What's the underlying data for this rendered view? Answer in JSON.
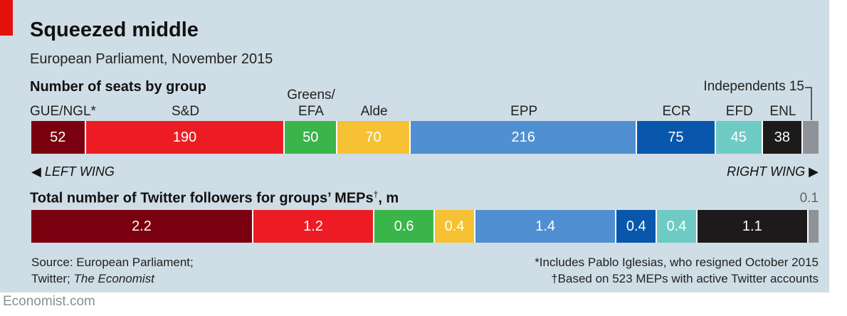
{
  "header": {
    "title": "Squeezed middle",
    "subtitle": "European Parliament, November 2015"
  },
  "seats_heading": "Number of seats by group",
  "twitter_heading": "Total number of Twitter followers for groups’ MEPs",
  "twitter_heading_mark": "†",
  "twitter_heading_unit": ", m",
  "independents_label": "Independents 15",
  "twitter_other_label": "0.1",
  "wing_left": "LEFT WING",
  "wing_right": "RIGHT WING",
  "arrow_left": "◀",
  "arrow_right": "▶",
  "source_line1": "Source: European Parliament;",
  "source_line2_prefix": "Twitter; ",
  "source_line2_italic": "The Economist",
  "note1": "*Includes Pablo Iglesias, who resigned October 2015",
  "note2": "†Based on 523 MEPs with active Twitter accounts",
  "footer": "Economist.com",
  "colors": {
    "GUE/NGL": "#7a000f",
    "S&D": "#ed1c24",
    "Greens/EFA": "#3ab54a",
    "Alde": "#f6c233",
    "EPP": "#508fd1",
    "ECR": "#0857ac",
    "EFD": "#6dcbc4",
    "ENL": "#1c1a1a",
    "Independents": "#8e9399"
  },
  "chart_data": [
    {
      "type": "bar",
      "orientation": "horizontal-stacked",
      "title": "Number of seats by group",
      "categories": [
        "GUE/NGL",
        "S&D",
        "Greens/EFA",
        "Alde",
        "EPP",
        "ECR",
        "EFD",
        "ENL",
        "Independents"
      ],
      "category_labels": [
        "GUE/NGL*",
        "S&D",
        "Greens/\nEFA",
        "Alde",
        "EPP",
        "ECR",
        "EFD",
        "ENL",
        ""
      ],
      "values": [
        52,
        190,
        50,
        70,
        216,
        75,
        45,
        38,
        15
      ],
      "value_labels": [
        "52",
        "190",
        "50",
        "70",
        "216",
        "75",
        "45",
        "38",
        ""
      ]
    },
    {
      "type": "bar",
      "orientation": "horizontal-stacked",
      "title": "Total number of Twitter followers for groups’ MEPs†, m",
      "categories": [
        "GUE/NGL",
        "S&D",
        "Greens/EFA",
        "Alde",
        "EPP",
        "ECR",
        "EFD",
        "ENL",
        "Independents"
      ],
      "values": [
        2.2,
        1.2,
        0.6,
        0.4,
        1.4,
        0.4,
        0.4,
        1.1,
        0.1
      ],
      "value_labels": [
        "2.2",
        "1.2",
        "0.6",
        "0.4",
        "1.4",
        "0.4",
        "0.4",
        "1.1",
        ""
      ]
    }
  ]
}
